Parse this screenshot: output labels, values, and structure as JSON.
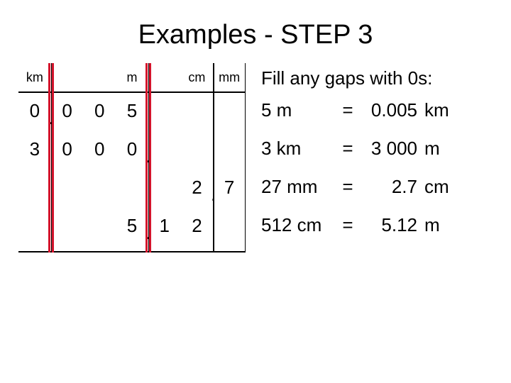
{
  "title": "Examples - STEP 3",
  "instruction": "Fill any gaps with 0s:",
  "table": {
    "headers": [
      "km",
      "",
      "",
      "m",
      "",
      "cm",
      "mm"
    ],
    "rows": [
      {
        "cells": [
          "0",
          "0",
          "0",
          "5",
          "",
          "",
          ""
        ],
        "dot_after_col": 0
      },
      {
        "cells": [
          "3",
          "0",
          "0",
          "0",
          "",
          "",
          ""
        ],
        "dot_after_col": 3
      },
      {
        "cells": [
          "",
          "",
          "",
          "",
          "",
          "2",
          "7"
        ],
        "dot_after_col": 5
      },
      {
        "cells": [
          "",
          "",
          "",
          "5",
          "1",
          "2",
          ""
        ],
        "dot_after_col": 3
      }
    ],
    "colors": {
      "line_black": "#000000",
      "line_red": "#d4142c"
    }
  },
  "equations": [
    {
      "lhs": "5 m",
      "eq": "=",
      "value": "0.005",
      "unit": "km"
    },
    {
      "lhs": "3 km",
      "eq": "=",
      "value": "3 000",
      "unit": "m"
    },
    {
      "lhs": "27 mm",
      "eq": "=",
      "value": "2.7",
      "unit": "cm"
    },
    {
      "lhs": "512 cm",
      "eq": "=",
      "value": "5.12",
      "unit": "m"
    }
  ]
}
